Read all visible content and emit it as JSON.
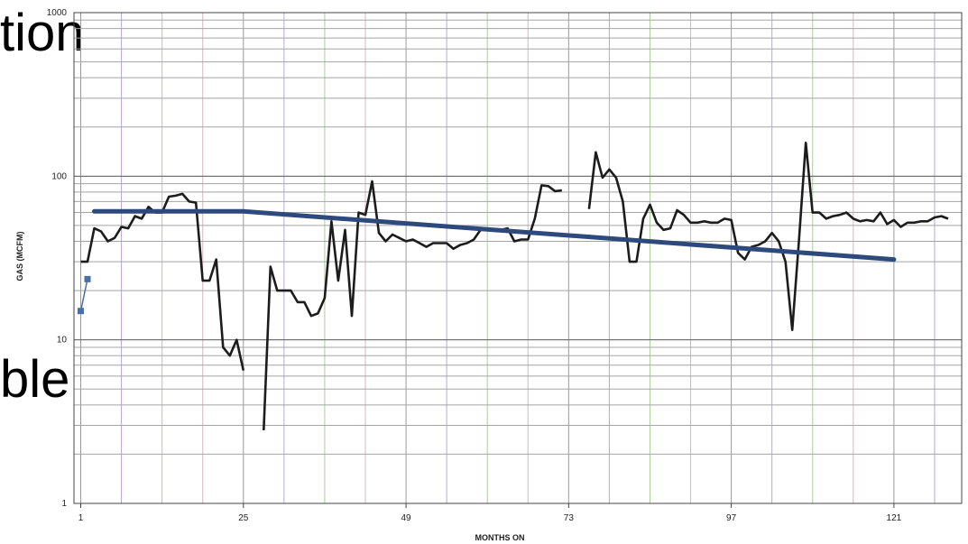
{
  "overlay_text": {
    "top": "tion",
    "mid": "ble"
  },
  "chart_data": {
    "type": "line",
    "title": "",
    "xlabel": "MONTHS ON",
    "ylabel": "GAS (MCFM)",
    "xlim": [
      0,
      131
    ],
    "ylim": [
      1,
      1000
    ],
    "yscale": "log",
    "xticks": [
      1,
      25,
      49,
      73,
      97,
      121
    ],
    "xtick_labels": [
      "1",
      "25",
      "49",
      "73",
      "97",
      "121"
    ],
    "yticks": [
      1,
      10,
      100,
      1000
    ],
    "ytick_labels": [
      "1",
      "10",
      "100",
      "1000"
    ],
    "grid": true,
    "legend": "none",
    "series": [
      {
        "style": "early-points",
        "color": "#4a6fa5",
        "points": [
          [
            1,
            15
          ],
          [
            2,
            23.5
          ]
        ]
      },
      {
        "style": "production",
        "color": "#1c1c1c",
        "segments": [
          [
            [
              1,
              30
            ],
            [
              2,
              30
            ],
            [
              3,
              48
            ],
            [
              4,
              46
            ],
            [
              5,
              40
            ],
            [
              6,
              42
            ],
            [
              7,
              49
            ],
            [
              8,
              48
            ],
            [
              9,
              57
            ],
            [
              10,
              55
            ],
            [
              11,
              65
            ],
            [
              12,
              60
            ],
            [
              13,
              60
            ],
            [
              14,
              75
            ],
            [
              15,
              76
            ],
            [
              16,
              78
            ],
            [
              17,
              70
            ],
            [
              18,
              69
            ],
            [
              19,
              23
            ],
            [
              20,
              23
            ],
            [
              21,
              31
            ],
            [
              22,
              9
            ],
            [
              23,
              8
            ],
            [
              24,
              10
            ],
            [
              25,
              6.5
            ]
          ],
          [
            [
              28,
              2.8
            ],
            [
              29,
              28
            ],
            [
              30,
              20
            ],
            [
              31,
              20
            ],
            [
              32,
              20
            ],
            [
              33,
              17
            ],
            [
              34,
              17
            ],
            [
              35,
              14
            ],
            [
              36,
              14.5
            ],
            [
              37,
              18
            ],
            [
              38,
              53
            ],
            [
              39,
              23
            ],
            [
              40,
              47
            ],
            [
              41,
              14
            ],
            [
              42,
              60
            ],
            [
              43,
              58
            ],
            [
              44,
              93
            ],
            [
              45,
              45
            ],
            [
              46,
              40
            ],
            [
              47,
              44
            ],
            [
              48,
              42
            ],
            [
              49,
              40
            ],
            [
              50,
              41
            ],
            [
              51,
              39
            ],
            [
              52,
              37
            ],
            [
              53,
              39
            ],
            [
              54,
              39
            ],
            [
              55,
              39
            ],
            [
              56,
              36
            ],
            [
              57,
              38
            ],
            [
              58,
              39
            ],
            [
              59,
              41
            ],
            [
              60,
              47
            ],
            [
              61,
              47
            ],
            [
              62,
              47
            ],
            [
              63,
              47
            ],
            [
              64,
              48
            ],
            [
              65,
              40
            ],
            [
              66,
              41
            ],
            [
              67,
              41
            ],
            [
              68,
              55
            ],
            [
              69,
              88
            ],
            [
              70,
              87
            ],
            [
              71,
              81
            ],
            [
              72,
              82
            ]
          ],
          [
            [
              76,
              63
            ],
            [
              77,
              140
            ],
            [
              78,
              98
            ],
            [
              79,
              110
            ],
            [
              80,
              98
            ],
            [
              81,
              70
            ],
            [
              82,
              30
            ],
            [
              83,
              30
            ],
            [
              84,
              55
            ],
            [
              85,
              67
            ],
            [
              86,
              52
            ],
            [
              87,
              47
            ],
            [
              88,
              48
            ],
            [
              89,
              62
            ],
            [
              90,
              58
            ],
            [
              91,
              52
            ],
            [
              92,
              52
            ],
            [
              93,
              53
            ],
            [
              94,
              52
            ],
            [
              95,
              52
            ],
            [
              96,
              55
            ],
            [
              97,
              54
            ],
            [
              98,
              34
            ],
            [
              99,
              31
            ],
            [
              100,
              37
            ],
            [
              101,
              38
            ],
            [
              102,
              40
            ],
            [
              103,
              45
            ],
            [
              104,
              40
            ],
            [
              105,
              30
            ],
            [
              106,
              11.5
            ],
            [
              107,
              41
            ],
            [
              108,
              160
            ],
            [
              109,
              60
            ],
            [
              110,
              60
            ],
            [
              111,
              55
            ],
            [
              112,
              57
            ],
            [
              113,
              58
            ],
            [
              114,
              60
            ],
            [
              115,
              55
            ],
            [
              116,
              53
            ],
            [
              117,
              54
            ],
            [
              118,
              53
            ],
            [
              119,
              60
            ],
            [
              120,
              51
            ],
            [
              121,
              54
            ],
            [
              122,
              49
            ],
            [
              123,
              52
            ],
            [
              124,
              52
            ],
            [
              125,
              53
            ],
            [
              126,
              53
            ],
            [
              127,
              56
            ],
            [
              128,
              57
            ],
            [
              129,
              55
            ]
          ]
        ]
      },
      {
        "style": "decline-trend",
        "color": "#2e4a7d",
        "points": [
          [
            3,
            61
          ],
          [
            25,
            61
          ],
          [
            121,
            31
          ]
        ]
      }
    ]
  }
}
